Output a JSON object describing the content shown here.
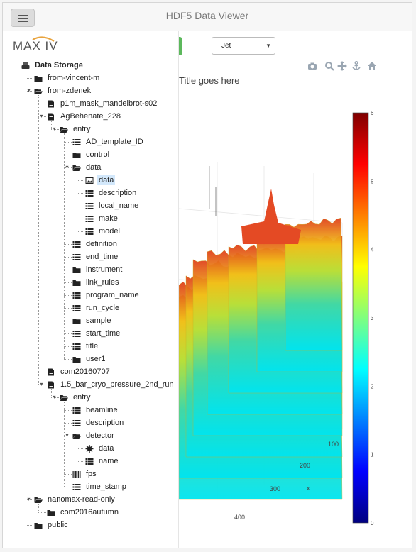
{
  "app": {
    "title": "HDF5 Data Viewer",
    "logo_text": "MAX IV"
  },
  "tree": [
    {
      "id": "data-storage",
      "label": "Data Storage",
      "icon": "drive-icon",
      "depth": 0,
      "bold": true
    },
    {
      "id": "from-vincent-m",
      "label": "from-vincent-m",
      "icon": "folder-icon",
      "depth": 1,
      "toggle": "+"
    },
    {
      "id": "from-zdenek",
      "label": "from-zdenek",
      "icon": "folder-open-icon",
      "depth": 1,
      "toggle": "-"
    },
    {
      "id": "p1m-mask",
      "label": "p1m_mask_mandelbrot-s02",
      "icon": "file-icon",
      "depth": 2,
      "toggle": "+"
    },
    {
      "id": "agbehenate",
      "label": "AgBehenate_228",
      "icon": "file-icon",
      "depth": 2,
      "toggle": "-"
    },
    {
      "id": "entry-1",
      "label": "entry",
      "icon": "folder-open-icon",
      "depth": 3,
      "toggle": "-"
    },
    {
      "id": "ad-template",
      "label": "AD_template_ID",
      "icon": "dataset-icon",
      "depth": 4
    },
    {
      "id": "control",
      "label": "control",
      "icon": "folder-icon",
      "depth": 4,
      "toggle": "+"
    },
    {
      "id": "data-group",
      "label": "data",
      "icon": "folder-open-icon",
      "depth": 4,
      "toggle": "-"
    },
    {
      "id": "data-image",
      "label": "data",
      "icon": "image-icon",
      "depth": 5,
      "selected": true
    },
    {
      "id": "description-1",
      "label": "description",
      "icon": "dataset-icon",
      "depth": 5
    },
    {
      "id": "local-name",
      "label": "local_name",
      "icon": "dataset-icon",
      "depth": 5
    },
    {
      "id": "make",
      "label": "make",
      "icon": "dataset-icon",
      "depth": 5
    },
    {
      "id": "model",
      "label": "model",
      "icon": "dataset-icon",
      "depth": 5
    },
    {
      "id": "definition",
      "label": "definition",
      "icon": "dataset-icon",
      "depth": 4
    },
    {
      "id": "end-time",
      "label": "end_time",
      "icon": "dataset-icon",
      "depth": 4
    },
    {
      "id": "instrument",
      "label": "instrument",
      "icon": "folder-icon",
      "depth": 4,
      "toggle": "+"
    },
    {
      "id": "link-rules",
      "label": "link_rules",
      "icon": "folder-icon",
      "depth": 4,
      "toggle": "+"
    },
    {
      "id": "program-name",
      "label": "program_name",
      "icon": "dataset-icon",
      "depth": 4
    },
    {
      "id": "run-cycle",
      "label": "run_cycle",
      "icon": "dataset-icon",
      "depth": 4
    },
    {
      "id": "sample",
      "label": "sample",
      "icon": "folder-icon",
      "depth": 4,
      "toggle": "+"
    },
    {
      "id": "start-time",
      "label": "start_time",
      "icon": "dataset-icon",
      "depth": 4
    },
    {
      "id": "title",
      "label": "title",
      "icon": "dataset-icon",
      "depth": 4
    },
    {
      "id": "user1",
      "label": "user1",
      "icon": "folder-icon",
      "depth": 4,
      "toggle": "+"
    },
    {
      "id": "com20160707",
      "label": "com20160707",
      "icon": "file-icon",
      "depth": 2,
      "toggle": "+"
    },
    {
      "id": "bar-cryo",
      "label": "1.5_bar_cryo_pressure_2nd_run",
      "icon": "file-icon",
      "depth": 2,
      "toggle": "-"
    },
    {
      "id": "entry-2",
      "label": "entry",
      "icon": "folder-open-icon",
      "depth": 3,
      "toggle": "-"
    },
    {
      "id": "beamline",
      "label": "beamline",
      "icon": "dataset-icon",
      "depth": 4
    },
    {
      "id": "description-2",
      "label": "description",
      "icon": "dataset-icon",
      "depth": 4
    },
    {
      "id": "detector",
      "label": "detector",
      "icon": "folder-open-icon",
      "depth": 4,
      "toggle": "-"
    },
    {
      "id": "detector-data",
      "label": "data",
      "icon": "asterisk-icon",
      "depth": 5
    },
    {
      "id": "detector-name",
      "label": "name",
      "icon": "dataset-icon",
      "depth": 5
    },
    {
      "id": "fps",
      "label": "fps",
      "icon": "barcode-icon",
      "depth": 4
    },
    {
      "id": "time-stamp",
      "label": "time_stamp",
      "icon": "dataset-icon",
      "depth": 4
    },
    {
      "id": "nanomax",
      "label": "nanomax-read-only",
      "icon": "folder-open-icon",
      "depth": 1,
      "toggle": "-"
    },
    {
      "id": "com2016autumn",
      "label": "com2016autumn",
      "icon": "folder-icon",
      "depth": 2,
      "toggle": "+"
    },
    {
      "id": "public",
      "label": "public",
      "icon": "folder-icon",
      "depth": 1,
      "toggle": "+"
    }
  ],
  "toolbar": {
    "colormap": "Jet",
    "icons": [
      "camera-icon",
      "zoom-icon",
      "pan-icon",
      "anchor-icon",
      "home-icon"
    ]
  },
  "plot": {
    "title": "Title goes here",
    "x_axis_label": "x",
    "x_ticks": [
      "100",
      "200",
      "300",
      "400"
    ],
    "colorbar_ticks": [
      "0",
      "1",
      "2",
      "3",
      "4",
      "5",
      "6"
    ],
    "colormap_colors": [
      "#00007f",
      "#0000ff",
      "#007fff",
      "#00ffff",
      "#7fff7f",
      "#ffff00",
      "#ff7f00",
      "#ff0000",
      "#7f0000"
    ]
  }
}
